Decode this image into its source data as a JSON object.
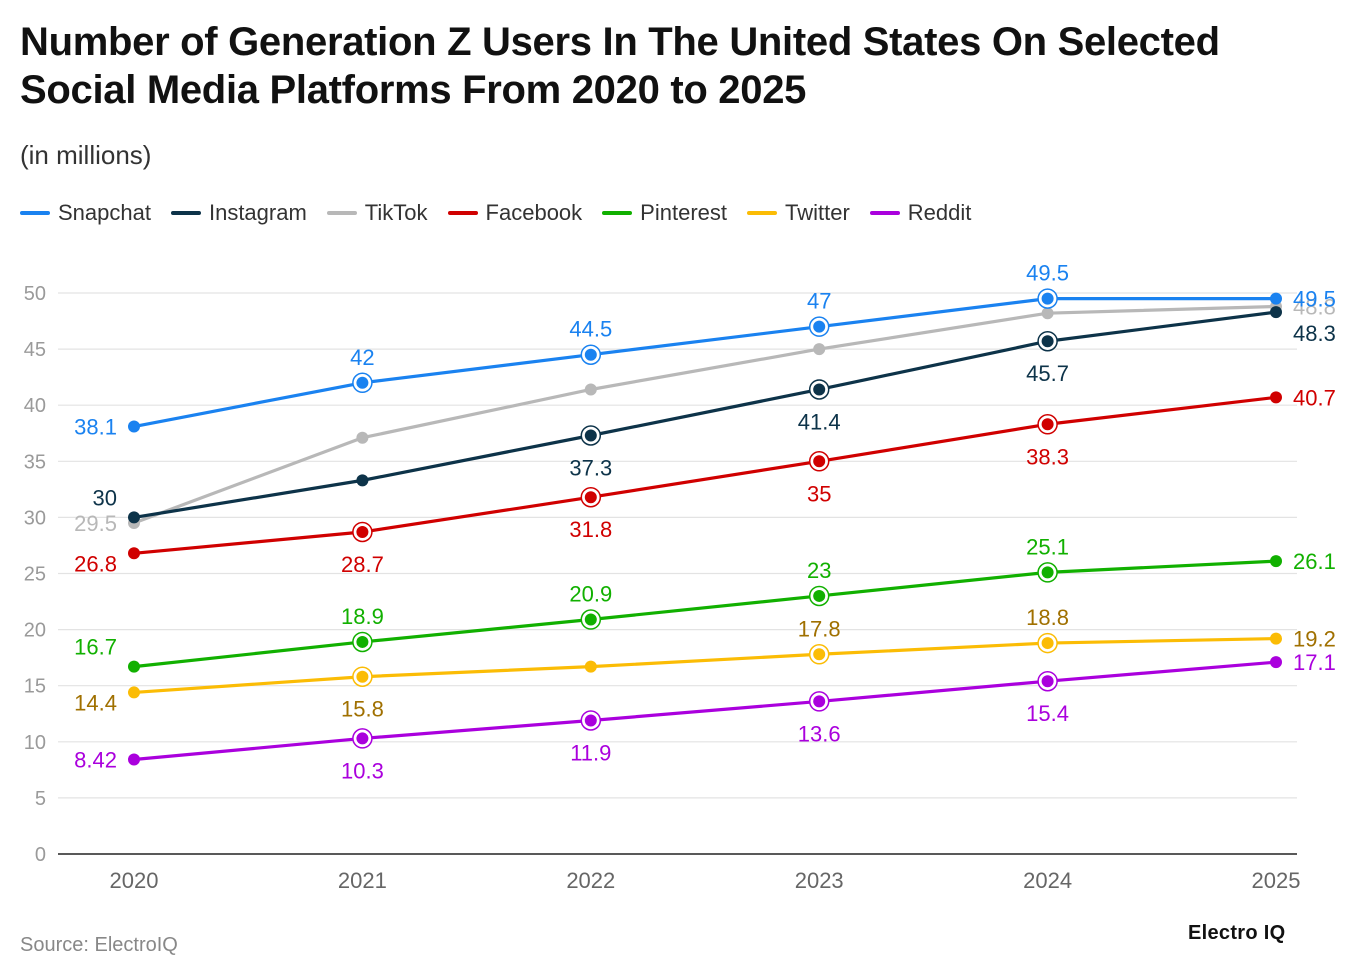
{
  "chart_data": {
    "type": "line",
    "title": "Number of Generation Z Users In The United States On Selected Social Media Platforms From 2020 to 2025",
    "subtitle": "(in millions)",
    "x": [
      "2020",
      "2021",
      "2022",
      "2023",
      "2024",
      "2025"
    ],
    "ylim": [
      0,
      50
    ],
    "yticks": [
      "0",
      "5",
      "10",
      "15",
      "20",
      "25",
      "30",
      "35",
      "40",
      "45",
      "50"
    ],
    "grid": true,
    "legend_position": "top-left",
    "series": [
      {
        "name": "Snapchat",
        "color": "#1a82f0",
        "values": [
          38.1,
          42,
          44.5,
          47,
          49.5,
          49.5
        ],
        "labels": [
          "38.1",
          "42",
          "44.5",
          "47",
          "49.5",
          "49.5"
        ],
        "label_pos": [
          "left",
          "above",
          "above",
          "above",
          "above",
          "right"
        ]
      },
      {
        "name": "Instagram",
        "color": "#0d3349",
        "values": [
          30,
          33.3,
          37.3,
          41.4,
          45.7,
          48.3
        ],
        "labels": [
          "30",
          "",
          "37.3",
          "41.4",
          "45.7",
          "48.3"
        ],
        "label_pos": [
          "aboveleft",
          "none",
          "below",
          "below",
          "below",
          "belowright"
        ]
      },
      {
        "name": "TikTok",
        "color": "#b8b8b8",
        "values": [
          29.5,
          37.1,
          41.4,
          45,
          48.2,
          48.8
        ],
        "labels": [
          "29.5",
          "",
          "",
          "",
          "",
          "48.8"
        ],
        "label_pos": [
          "left",
          "none",
          "none",
          "none",
          "none",
          "right"
        ]
      },
      {
        "name": "Facebook",
        "color": "#d00000",
        "values": [
          26.8,
          28.7,
          31.8,
          35,
          38.3,
          40.7
        ],
        "labels": [
          "26.8",
          "28.7",
          "31.8",
          "35",
          "38.3",
          "40.7"
        ],
        "label_pos": [
          "belowleft",
          "below",
          "below",
          "below",
          "below",
          "right"
        ]
      },
      {
        "name": "Pinterest",
        "color": "#11b000",
        "values": [
          16.7,
          18.9,
          20.9,
          23,
          25.1,
          26.1
        ],
        "labels": [
          "16.7",
          "18.9",
          "20.9",
          "23",
          "25.1",
          "26.1"
        ],
        "label_pos": [
          "aboveleft",
          "above",
          "above",
          "above",
          "above",
          "right"
        ]
      },
      {
        "name": "Twitter",
        "color": "#fbbc05",
        "label_color": "#a07000",
        "values": [
          14.4,
          15.8,
          16.7,
          17.8,
          18.8,
          19.2
        ],
        "labels": [
          "14.4",
          "15.8",
          "",
          "17.8",
          "18.8",
          "19.2"
        ],
        "label_pos": [
          "belowleft",
          "below",
          "none",
          "above",
          "above",
          "right"
        ]
      },
      {
        "name": "Reddit",
        "color": "#aa00dd",
        "values": [
          8.42,
          10.3,
          11.9,
          13.6,
          15.4,
          17.1
        ],
        "labels": [
          "8.42",
          "10.3",
          "11.9",
          "13.6",
          "15.4",
          "17.1"
        ],
        "label_pos": [
          "left",
          "below",
          "below",
          "below",
          "below",
          "right"
        ]
      }
    ]
  },
  "footer": {
    "source": "Source: ElectroIQ",
    "brand": "Electro IQ"
  }
}
